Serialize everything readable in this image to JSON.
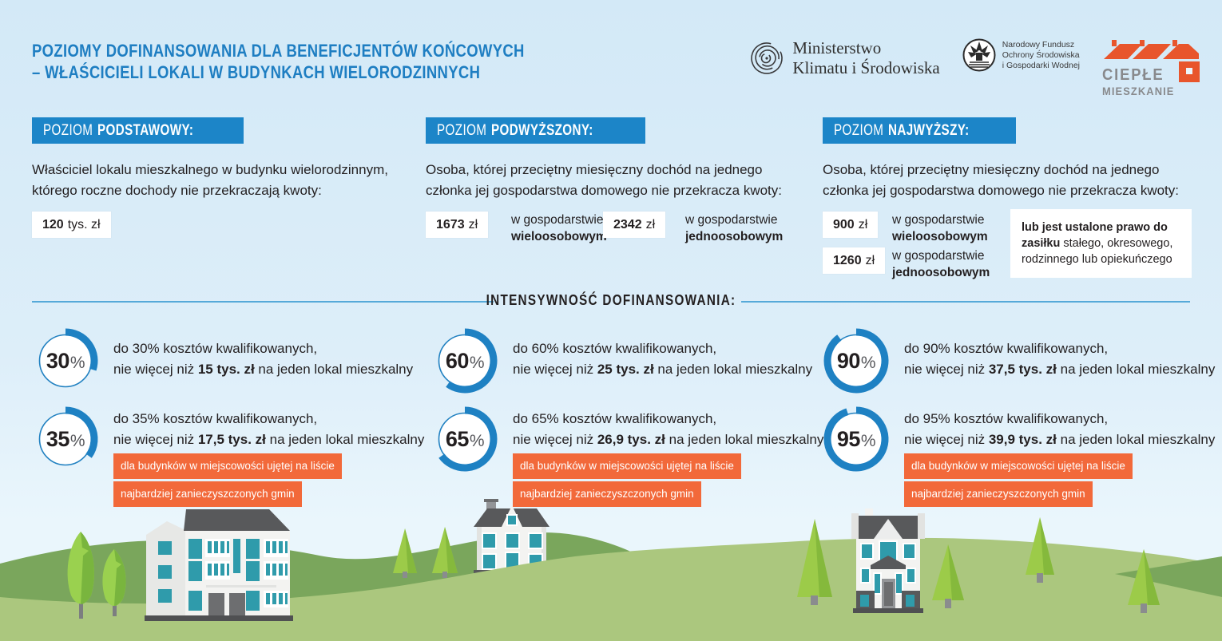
{
  "ui": {
    "percent_sign": "%"
  },
  "colors": {
    "accent_blue": "#1c85c8",
    "title_blue": "#1e7ec2",
    "orange_tag": "#f2693a",
    "donut_blue": "#1e81c3",
    "hill_dark": "#7aa65c",
    "hill_light": "#abc77e",
    "roof_gray": "#58595b",
    "window_teal": "#2f9bab"
  },
  "header": {
    "title_line1": "POZIOMY DOFINANSOWANIA DLA BENEFICJENTÓW KOŃCOWYCH",
    "title_line2": "– WŁAŚCICIELI LOKALI W BUDYNKACH WIELORODZINNYCH",
    "logos": {
      "ministry": {
        "line1": "Ministerstwo",
        "line2": "Klimatu i Środowiska"
      },
      "nfos": {
        "line1": "Narodowy Fundusz",
        "line2": "Ochrony Środowiska",
        "line3": "i Gospodarki Wodnej"
      },
      "cieple": {
        "line1": "CIEPŁE",
        "line2": "MIESZKANIE"
      }
    }
  },
  "levels": [
    {
      "badge_prefix": "POZIOM",
      "badge_name": "PODSTAWOWY:",
      "desc1": "Właściciel lokalu mieszkalnego w budynku wielorodzinnym,",
      "desc2": "którego roczne dochody nie przekraczają kwoty:",
      "amount_value": "120",
      "amount_unit": "tys. zł"
    },
    {
      "badge_prefix": "POZIOM",
      "badge_name": "PODWYŻSZONY:",
      "desc1": "Osoba, której przeciętny miesięczny dochód na jednego",
      "desc2": "członka jej gospodarstwa domowego nie przekracza kwoty:",
      "amounts": [
        {
          "value": "1673",
          "unit": "zł",
          "label1": "w gospodarstwie",
          "label2": "wieloosobowym"
        },
        {
          "value": "2342",
          "unit": "zł",
          "label1": "w gospodarstwie",
          "label2": "jednoosobowym"
        }
      ]
    },
    {
      "badge_prefix": "POZIOM",
      "badge_name": "NAJWYŻSZY:",
      "desc1": "Osoba, której przeciętny miesięczny dochód na jednego",
      "desc2": "członka jej gospodarstwa domowego nie przekracza kwoty:",
      "amounts": [
        {
          "value": "900",
          "unit": "zł",
          "label1": "w gospodarstwie",
          "label2": "wieloosobowym"
        },
        {
          "value": "1260",
          "unit": "zł",
          "label1": "w gospodarstwie",
          "label2": "jednoosobowym"
        }
      ],
      "note_bold": "lub jest ustalone prawo do zasiłku",
      "note_rest": " stałego, okresowego, rodzinnego lub opiekuńczego"
    }
  ],
  "divider": {
    "label": "INTENSYWNOŚĆ DOFINANSOWANIA:"
  },
  "intensity": [
    {
      "rows": [
        {
          "pct": 30,
          "pct_label": "30",
          "line1": "do 30% kosztów kwalifikowanych,",
          "line2_prefix": "nie więcej niż ",
          "line2_bold": "15 tys. zł",
          "line2_suffix": " na jeden lokal mieszkalny"
        },
        {
          "pct": 35,
          "pct_label": "35",
          "line1": "do 35% kosztów kwalifikowanych,",
          "line2_prefix": "nie więcej niż ",
          "line2_bold": "17,5 tys. zł",
          "line2_suffix": " na jeden lokal mieszkalny",
          "tags": [
            "dla budynków w miejscowości ujętej na liście",
            "najbardziej zanieczyszczonych gmin"
          ]
        }
      ]
    },
    {
      "rows": [
        {
          "pct": 60,
          "pct_label": "60",
          "line1": "do 60% kosztów kwalifikowanych,",
          "line2_prefix": "nie więcej niż ",
          "line2_bold": "25 tys. zł",
          "line2_suffix": " na jeden lokal mieszkalny"
        },
        {
          "pct": 65,
          "pct_label": "65",
          "line1": "do 65% kosztów kwalifikowanych,",
          "line2_prefix": "nie więcej niż ",
          "line2_bold": "26,9 tys. zł",
          "line2_suffix": " na jeden lokal mieszkalny",
          "tags": [
            "dla budynków w miejscowości ujętej na liście",
            "najbardziej zanieczyszczonych gmin"
          ]
        }
      ]
    },
    {
      "rows": [
        {
          "pct": 90,
          "pct_label": "90",
          "line1": "do 90% kosztów kwalifikowanych,",
          "line2_prefix": "nie więcej niż ",
          "line2_bold": "37,5 tys. zł",
          "line2_suffix": " na jeden lokal mieszkalny"
        },
        {
          "pct": 95,
          "pct_label": "95",
          "line1": "do 95% kosztów kwalifikowanych,",
          "line2_prefix": "nie więcej niż ",
          "line2_bold": "39,9 tys. zł",
          "line2_suffix": " na jeden lokal mieszkalny",
          "tags": [
            "dla budynków w miejscowości ujętej na liście",
            "najbardziej zanieczyszczonych gmin"
          ]
        }
      ]
    }
  ]
}
